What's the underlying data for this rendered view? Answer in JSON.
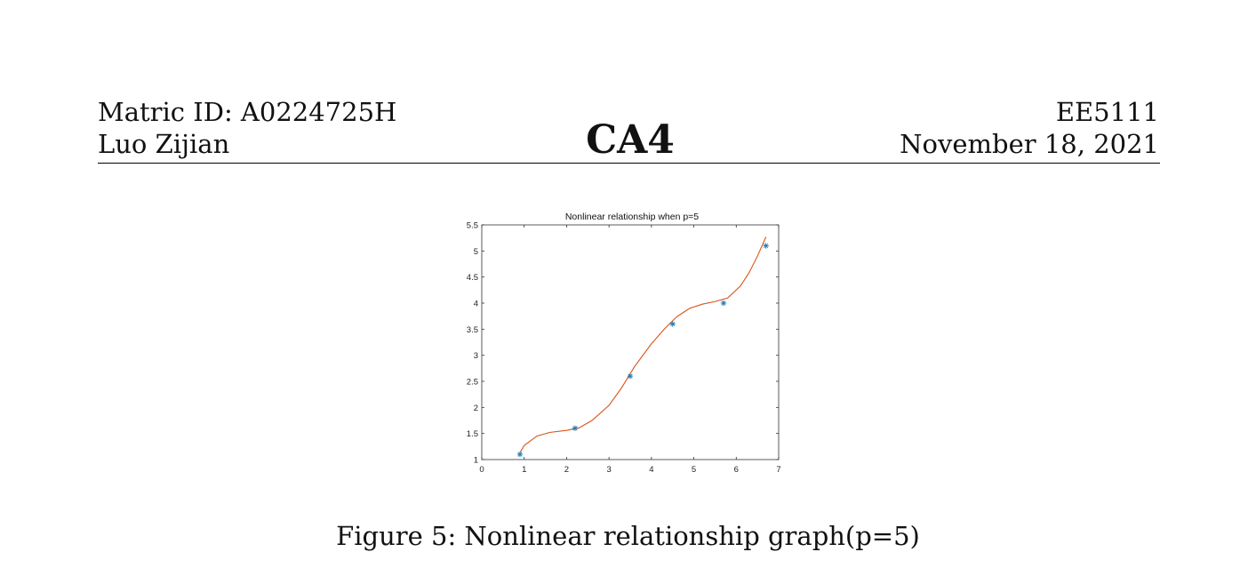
{
  "header": {
    "matric": "Matric ID: A0224725H",
    "author": "Luo Zijian",
    "title": "CA4",
    "course": "EE5111",
    "date": "November 18, 2021"
  },
  "figure": {
    "caption": "Figure 5: Nonlinear relationship graph(p=5)"
  },
  "chart_data": {
    "type": "scatter",
    "title": "Nonlinear relationship when p=5",
    "xlabel": "",
    "ylabel": "",
    "xlim": [
      0,
      7
    ],
    "ylim": [
      1,
      5.5
    ],
    "xticks": [
      0,
      1,
      2,
      3,
      4,
      5,
      6,
      7
    ],
    "yticks": [
      1,
      1.5,
      2,
      2.5,
      3,
      3.5,
      4,
      4.5,
      5,
      5.5
    ],
    "grid": false,
    "legend": "none",
    "series": [
      {
        "marker": "asterisk",
        "color": "#1f77b4",
        "points": [
          [
            0.9,
            1.1
          ],
          [
            2.2,
            1.6
          ],
          [
            3.5,
            2.6
          ],
          [
            4.5,
            3.6
          ],
          [
            5.7,
            4.0
          ],
          [
            6.7,
            5.1
          ]
        ]
      },
      {
        "marker": "line",
        "color": "#d95319",
        "points": [
          [
            0.9,
            1.13
          ],
          [
            1.0,
            1.27
          ],
          [
            1.3,
            1.45
          ],
          [
            1.6,
            1.52
          ],
          [
            2.0,
            1.56
          ],
          [
            2.3,
            1.61
          ],
          [
            2.6,
            1.75
          ],
          [
            3.0,
            2.04
          ],
          [
            3.3,
            2.38
          ],
          [
            3.6,
            2.78
          ],
          [
            4.0,
            3.22
          ],
          [
            4.3,
            3.5
          ],
          [
            4.6,
            3.74
          ],
          [
            4.9,
            3.9
          ],
          [
            5.2,
            3.98
          ],
          [
            5.5,
            4.03
          ],
          [
            5.8,
            4.1
          ],
          [
            6.1,
            4.33
          ],
          [
            6.3,
            4.58
          ],
          [
            6.5,
            4.9
          ],
          [
            6.7,
            5.27
          ]
        ]
      }
    ]
  }
}
